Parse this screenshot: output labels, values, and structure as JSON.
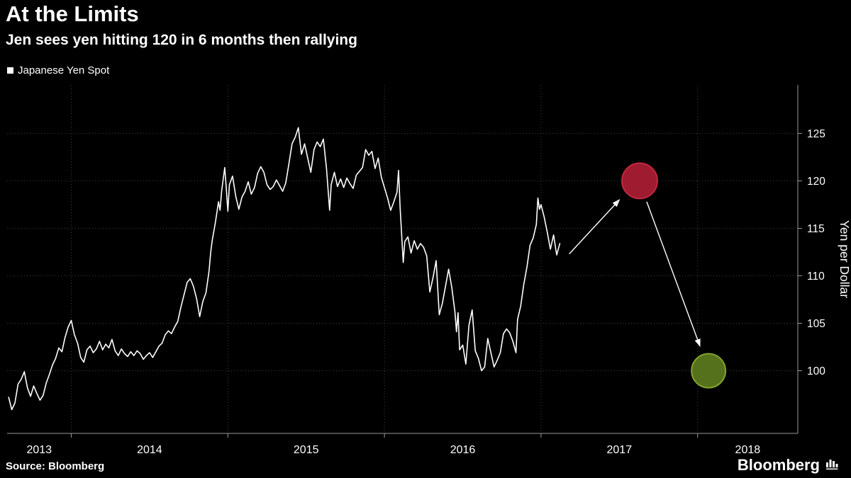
{
  "footer": {
    "source_label": "Source: Bloomberg",
    "brand": "Bloomberg"
  },
  "chart_data": {
    "type": "line",
    "title": "At the Limits",
    "subtitle": "Jen sees yen hitting 120 in 6 months then rallying",
    "ylabel": "Yen per Dollar",
    "x_range": [
      2013.59,
      2018.64
    ],
    "y_range": [
      93.4,
      130.1
    ],
    "y_ticks": [
      100,
      105,
      110,
      115,
      120,
      125
    ],
    "x_gridline_years": [
      2014,
      2015,
      2016,
      2017,
      2018
    ],
    "x_year_labels": [
      2013,
      2014,
      2015,
      2016,
      2017,
      2018
    ],
    "grid": {
      "color": "#3f3f3f",
      "style": "dotted"
    },
    "axis_color": "#9a9a9a",
    "text_color": "#ffffff",
    "background": "#000000",
    "series": [
      {
        "name": "Japanese Yen Spot",
        "color": "#ffffff",
        "points": [
          [
            2013.6,
            97.2
          ],
          [
            2013.62,
            95.9
          ],
          [
            2013.64,
            96.6
          ],
          [
            2013.66,
            98.6
          ],
          [
            2013.68,
            99.1
          ],
          [
            2013.7,
            99.9
          ],
          [
            2013.72,
            98.2
          ],
          [
            2013.74,
            97.3
          ],
          [
            2013.76,
            98.4
          ],
          [
            2013.78,
            97.6
          ],
          [
            2013.8,
            96.9
          ],
          [
            2013.82,
            97.4
          ],
          [
            2013.84,
            98.7
          ],
          [
            2013.86,
            99.6
          ],
          [
            2013.88,
            100.6
          ],
          [
            2013.9,
            101.3
          ],
          [
            2013.92,
            102.4
          ],
          [
            2013.94,
            102.0
          ],
          [
            2013.96,
            103.5
          ],
          [
            2013.98,
            104.6
          ],
          [
            2014.0,
            105.3
          ],
          [
            2014.02,
            103.8
          ],
          [
            2014.04,
            102.9
          ],
          [
            2014.06,
            101.4
          ],
          [
            2014.08,
            100.9
          ],
          [
            2014.1,
            102.2
          ],
          [
            2014.12,
            102.6
          ],
          [
            2014.14,
            101.9
          ],
          [
            2014.16,
            102.3
          ],
          [
            2014.18,
            103.1
          ],
          [
            2014.2,
            102.2
          ],
          [
            2014.22,
            102.8
          ],
          [
            2014.24,
            102.4
          ],
          [
            2014.26,
            103.3
          ],
          [
            2014.28,
            102.1
          ],
          [
            2014.3,
            101.6
          ],
          [
            2014.32,
            102.3
          ],
          [
            2014.34,
            101.8
          ],
          [
            2014.36,
            101.5
          ],
          [
            2014.38,
            102.0
          ],
          [
            2014.4,
            101.6
          ],
          [
            2014.42,
            102.1
          ],
          [
            2014.44,
            101.8
          ],
          [
            2014.46,
            101.2
          ],
          [
            2014.48,
            101.6
          ],
          [
            2014.5,
            101.9
          ],
          [
            2014.52,
            101.4
          ],
          [
            2014.54,
            102.0
          ],
          [
            2014.56,
            102.6
          ],
          [
            2014.58,
            102.9
          ],
          [
            2014.6,
            103.8
          ],
          [
            2014.62,
            104.2
          ],
          [
            2014.64,
            103.9
          ],
          [
            2014.66,
            104.6
          ],
          [
            2014.68,
            105.2
          ],
          [
            2014.7,
            106.7
          ],
          [
            2014.72,
            108.0
          ],
          [
            2014.74,
            109.3
          ],
          [
            2014.76,
            109.7
          ],
          [
            2014.78,
            108.9
          ],
          [
            2014.8,
            107.6
          ],
          [
            2014.82,
            105.7
          ],
          [
            2014.84,
            107.3
          ],
          [
            2014.86,
            108.2
          ],
          [
            2014.88,
            110.5
          ],
          [
            2014.89,
            112.4
          ],
          [
            2014.9,
            113.7
          ],
          [
            2014.92,
            115.6
          ],
          [
            2014.94,
            117.8
          ],
          [
            2014.95,
            116.9
          ],
          [
            2014.96,
            118.9
          ],
          [
            2014.98,
            121.4
          ],
          [
            2014.99,
            119.2
          ],
          [
            2015.0,
            116.8
          ],
          [
            2015.01,
            119.6
          ],
          [
            2015.03,
            120.5
          ],
          [
            2015.05,
            118.4
          ],
          [
            2015.07,
            117.0
          ],
          [
            2015.09,
            118.3
          ],
          [
            2015.11,
            118.9
          ],
          [
            2015.13,
            119.9
          ],
          [
            2015.15,
            118.6
          ],
          [
            2015.17,
            119.3
          ],
          [
            2015.19,
            120.8
          ],
          [
            2015.21,
            121.5
          ],
          [
            2015.23,
            120.9
          ],
          [
            2015.25,
            119.6
          ],
          [
            2015.27,
            119.1
          ],
          [
            2015.29,
            119.4
          ],
          [
            2015.31,
            120.1
          ],
          [
            2015.33,
            119.5
          ],
          [
            2015.35,
            118.9
          ],
          [
            2015.37,
            119.8
          ],
          [
            2015.39,
            121.8
          ],
          [
            2015.41,
            123.9
          ],
          [
            2015.43,
            124.6
          ],
          [
            2015.45,
            125.6
          ],
          [
            2015.47,
            122.8
          ],
          [
            2015.49,
            123.9
          ],
          [
            2015.51,
            122.4
          ],
          [
            2015.53,
            120.9
          ],
          [
            2015.55,
            123.3
          ],
          [
            2015.57,
            124.1
          ],
          [
            2015.59,
            123.6
          ],
          [
            2015.61,
            124.4
          ],
          [
            2015.63,
            121.3
          ],
          [
            2015.65,
            116.9
          ],
          [
            2015.66,
            119.6
          ],
          [
            2015.68,
            120.9
          ],
          [
            2015.7,
            119.4
          ],
          [
            2015.72,
            120.2
          ],
          [
            2015.74,
            119.3
          ],
          [
            2015.76,
            120.3
          ],
          [
            2015.78,
            119.7
          ],
          [
            2015.8,
            119.2
          ],
          [
            2015.82,
            120.6
          ],
          [
            2015.84,
            121.0
          ],
          [
            2015.86,
            121.4
          ],
          [
            2015.88,
            123.3
          ],
          [
            2015.9,
            122.7
          ],
          [
            2015.92,
            123.1
          ],
          [
            2015.94,
            121.3
          ],
          [
            2015.96,
            122.4
          ],
          [
            2015.98,
            120.4
          ],
          [
            2016.0,
            119.3
          ],
          [
            2016.02,
            118.2
          ],
          [
            2016.04,
            116.9
          ],
          [
            2016.06,
            117.8
          ],
          [
            2016.08,
            118.8
          ],
          [
            2016.09,
            121.1
          ],
          [
            2016.1,
            117.2
          ],
          [
            2016.12,
            111.4
          ],
          [
            2016.13,
            113.6
          ],
          [
            2016.15,
            114.1
          ],
          [
            2016.17,
            112.4
          ],
          [
            2016.19,
            113.7
          ],
          [
            2016.21,
            112.8
          ],
          [
            2016.23,
            113.4
          ],
          [
            2016.25,
            113.0
          ],
          [
            2016.27,
            112.1
          ],
          [
            2016.29,
            108.3
          ],
          [
            2016.31,
            109.8
          ],
          [
            2016.33,
            111.6
          ],
          [
            2016.35,
            105.9
          ],
          [
            2016.37,
            107.1
          ],
          [
            2016.39,
            108.9
          ],
          [
            2016.41,
            110.7
          ],
          [
            2016.43,
            108.8
          ],
          [
            2016.45,
            106.2
          ],
          [
            2016.46,
            104.1
          ],
          [
            2016.47,
            106.1
          ],
          [
            2016.48,
            102.2
          ],
          [
            2016.5,
            102.7
          ],
          [
            2016.52,
            100.7
          ],
          [
            2016.54,
            104.8
          ],
          [
            2016.56,
            106.4
          ],
          [
            2016.58,
            102.1
          ],
          [
            2016.6,
            101.3
          ],
          [
            2016.62,
            100.0
          ],
          [
            2016.64,
            100.4
          ],
          [
            2016.66,
            103.4
          ],
          [
            2016.68,
            101.9
          ],
          [
            2016.7,
            100.4
          ],
          [
            2016.72,
            101.1
          ],
          [
            2016.74,
            101.9
          ],
          [
            2016.76,
            103.9
          ],
          [
            2016.78,
            104.4
          ],
          [
            2016.8,
            104.0
          ],
          [
            2016.82,
            103.1
          ],
          [
            2016.84,
            101.9
          ],
          [
            2016.85,
            105.4
          ],
          [
            2016.87,
            106.8
          ],
          [
            2016.89,
            109.1
          ],
          [
            2016.91,
            110.9
          ],
          [
            2016.93,
            113.2
          ],
          [
            2016.95,
            114.0
          ],
          [
            2016.97,
            115.4
          ],
          [
            2016.98,
            118.2
          ],
          [
            2016.99,
            117.0
          ],
          [
            2017.0,
            117.5
          ],
          [
            2017.02,
            116.2
          ],
          [
            2017.04,
            114.6
          ],
          [
            2017.06,
            112.8
          ],
          [
            2017.08,
            114.3
          ],
          [
            2017.1,
            112.2
          ],
          [
            2017.12,
            113.4
          ]
        ]
      }
    ],
    "forecast_markers": [
      {
        "name": "forecast-circle-120",
        "x": 2017.63,
        "y": 120,
        "radius": 25,
        "fill": "#9e1b30",
        "stroke": "#c52740"
      },
      {
        "name": "forecast-circle-100",
        "x": 2018.07,
        "y": 100,
        "radius": 24,
        "fill": "#56711c",
        "stroke": "#83a32c"
      }
    ],
    "arrows": [
      {
        "from": [
          2017.18,
          112.3
        ],
        "to": [
          2017.5,
          118.0
        ]
      },
      {
        "from": [
          2017.675,
          117.8
        ],
        "to": [
          2018.015,
          102.6
        ]
      }
    ]
  }
}
